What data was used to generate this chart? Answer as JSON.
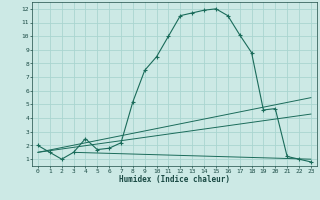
{
  "title": "",
  "xlabel": "Humidex (Indice chaleur)",
  "background_color": "#cce9e5",
  "grid_color": "#aad5d0",
  "line_color": "#1a6b5a",
  "xlim": [
    -0.5,
    23.5
  ],
  "ylim": [
    0.5,
    12.5
  ],
  "xticks": [
    0,
    1,
    2,
    3,
    4,
    5,
    6,
    7,
    8,
    9,
    10,
    11,
    12,
    13,
    14,
    15,
    16,
    17,
    18,
    19,
    20,
    21,
    22,
    23
  ],
  "yticks": [
    1,
    2,
    3,
    4,
    5,
    6,
    7,
    8,
    9,
    10,
    11,
    12
  ],
  "series1_x": [
    0,
    1,
    2,
    3,
    4,
    5,
    6,
    7,
    8,
    9,
    10,
    11,
    12,
    13,
    14,
    15,
    16,
    17,
    18,
    19,
    20,
    21,
    22,
    23
  ],
  "series1_y": [
    2.0,
    1.5,
    1.0,
    1.5,
    2.5,
    1.7,
    1.8,
    2.2,
    5.2,
    7.5,
    8.5,
    10.0,
    11.5,
    11.7,
    11.9,
    12.0,
    11.5,
    10.1,
    8.8,
    4.6,
    4.7,
    1.2,
    1.0,
    0.8
  ],
  "series2_x": [
    0,
    23
  ],
  "series2_y": [
    1.5,
    5.5
  ],
  "series3_x": [
    0,
    23
  ],
  "series3_y": [
    1.5,
    4.3
  ],
  "series4_x": [
    3,
    23
  ],
  "series4_y": [
    1.5,
    1.0
  ]
}
